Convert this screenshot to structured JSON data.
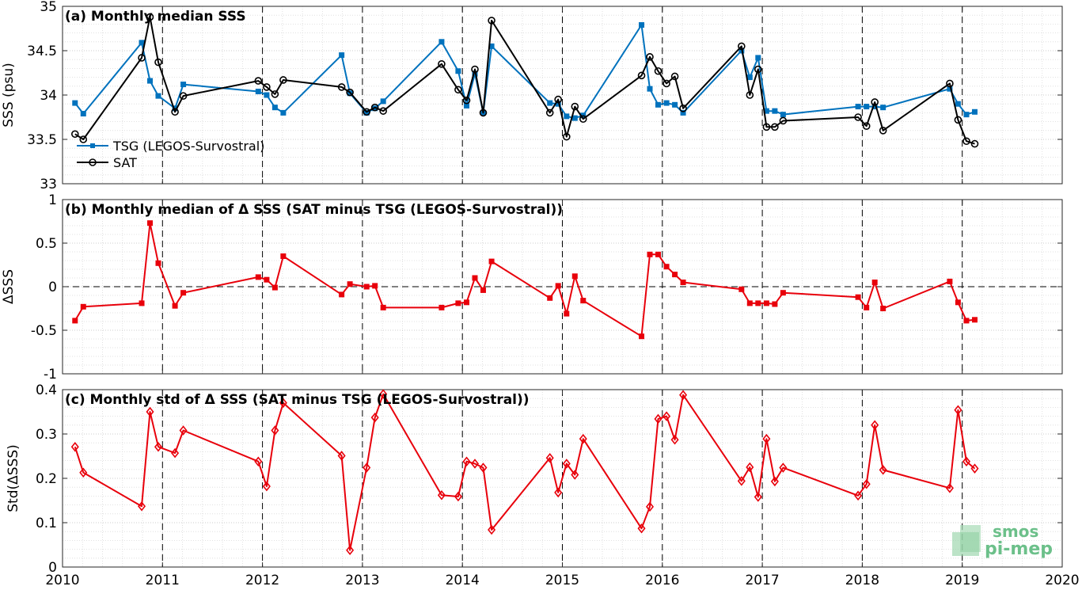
{
  "colors": {
    "tsg": "#0072BD",
    "sat": "#000000",
    "delta": "#E8000B",
    "grid": "#d9d9d9",
    "logo": "#6cc08a"
  },
  "logo": {
    "line1": "smos",
    "line2": "pi-mep"
  },
  "chart_data": [
    {
      "type": "line",
      "title": "(a) Monthly median SSS",
      "xlabel": "",
      "ylabel": "SSS (psu)",
      "xlim": [
        2010,
        2020
      ],
      "ylim": [
        33,
        35
      ],
      "xticks": [
        "2010",
        "2011",
        "2012",
        "2013",
        "2014",
        "2015",
        "2016",
        "2017",
        "2018",
        "2019",
        "2020"
      ],
      "yticks": [
        "33",
        "33.5",
        "34",
        "34.5",
        "35"
      ],
      "grid": true,
      "legend_position": "bottom-left",
      "series": [
        {
          "name": "TSG (LEGOS-Survostral)",
          "x": [
            2010.125,
            2010.208,
            2010.792,
            2010.875,
            2010.958,
            2011.125,
            2011.208,
            2011.958,
            2012.042,
            2012.125,
            2012.208,
            2012.792,
            2012.875,
            2013.042,
            2013.125,
            2013.208,
            2013.792,
            2013.958,
            2014.042,
            2014.125,
            2014.208,
            2014.292,
            2014.875,
            2014.958,
            2015.042,
            2015.125,
            2015.208,
            2015.792,
            2015.875,
            2015.958,
            2016.042,
            2016.125,
            2016.208,
            2016.792,
            2016.875,
            2016.958,
            2017.042,
            2017.125,
            2017.208,
            2017.958,
            2018.042,
            2018.125,
            2018.208,
            2018.875,
            2018.958,
            2019.042,
            2019.125
          ],
          "y": [
            33.91,
            33.79,
            34.59,
            34.16,
            33.99,
            33.85,
            34.12,
            34.04,
            34.0,
            33.86,
            33.8,
            34.45,
            34.02,
            33.8,
            33.85,
            33.93,
            34.6,
            34.27,
            33.88,
            34.24,
            33.8,
            34.55,
            33.91,
            33.9,
            33.76,
            33.74,
            33.77,
            34.79,
            34.07,
            33.89,
            33.91,
            33.89,
            33.8,
            34.5,
            34.2,
            34.42,
            33.82,
            33.82,
            33.78,
            33.87,
            33.87,
            33.87,
            33.86,
            34.07,
            33.9,
            33.78,
            33.81
          ]
        },
        {
          "name": "SAT",
          "x": [
            2010.125,
            2010.208,
            2010.792,
            2010.875,
            2010.958,
            2011.125,
            2011.208,
            2011.958,
            2012.042,
            2012.125,
            2012.208,
            2012.792,
            2012.875,
            2013.042,
            2013.125,
            2013.208,
            2013.792,
            2013.958,
            2014.042,
            2014.125,
            2014.208,
            2014.292,
            2014.875,
            2014.958,
            2015.042,
            2015.125,
            2015.208,
            2015.792,
            2015.875,
            2015.958,
            2016.042,
            2016.125,
            2016.208,
            2016.792,
            2016.875,
            2016.958,
            2017.042,
            2017.125,
            2017.208,
            2017.958,
            2018.042,
            2018.125,
            2018.208,
            2018.875,
            2018.958,
            2019.042,
            2019.125
          ],
          "y": [
            33.56,
            33.5,
            34.42,
            34.88,
            34.37,
            33.81,
            33.99,
            34.16,
            34.09,
            34.01,
            34.17,
            34.09,
            34.03,
            33.81,
            33.86,
            33.82,
            34.35,
            34.06,
            33.94,
            34.29,
            33.8,
            34.84,
            33.8,
            33.95,
            33.53,
            33.87,
            33.73,
            34.22,
            34.43,
            34.27,
            34.13,
            34.21,
            33.85,
            34.55,
            34.0,
            34.29,
            33.64,
            33.64,
            33.71,
            33.75,
            33.65,
            33.92,
            33.6,
            34.13,
            33.72,
            33.48,
            33.45
          ]
        }
      ]
    },
    {
      "type": "line",
      "title": "(b) Monthly median of Δ SSS (SAT minus TSG (LEGOS-Survostral))",
      "xlabel": "",
      "ylabel": "ΔSSS",
      "xlim": [
        2010,
        2020
      ],
      "ylim": [
        -1,
        1
      ],
      "xticks": [
        "2010",
        "2011",
        "2012",
        "2013",
        "2014",
        "2015",
        "2016",
        "2017",
        "2018",
        "2019",
        "2020"
      ],
      "yticks": [
        "-1",
        "-0.5",
        "0",
        "0.5",
        "1"
      ],
      "grid": true,
      "zero_line": true,
      "series": [
        {
          "x": [
            2010.125,
            2010.208,
            2010.792,
            2010.875,
            2010.958,
            2011.125,
            2011.208,
            2011.958,
            2012.042,
            2012.125,
            2012.208,
            2012.792,
            2012.875,
            2013.042,
            2013.125,
            2013.208,
            2013.792,
            2013.958,
            2014.042,
            2014.125,
            2014.208,
            2014.292,
            2014.875,
            2014.958,
            2015.042,
            2015.125,
            2015.208,
            2015.792,
            2015.875,
            2015.958,
            2016.042,
            2016.125,
            2016.208,
            2016.792,
            2016.875,
            2016.958,
            2017.042,
            2017.125,
            2017.208,
            2017.958,
            2018.042,
            2018.125,
            2018.208,
            2018.875,
            2018.958,
            2019.042,
            2019.125
          ],
          "y": [
            -0.39,
            -0.23,
            -0.19,
            0.73,
            0.27,
            -0.22,
            -0.07,
            0.11,
            0.08,
            -0.01,
            0.35,
            -0.09,
            0.03,
            0.0,
            0.01,
            -0.24,
            -0.24,
            -0.19,
            -0.18,
            0.1,
            -0.04,
            0.29,
            -0.13,
            0.01,
            -0.31,
            0.12,
            -0.16,
            -0.57,
            0.37,
            0.37,
            0.23,
            0.14,
            0.05,
            -0.03,
            -0.19,
            -0.19,
            -0.19,
            -0.2,
            -0.07,
            -0.12,
            -0.24,
            0.05,
            -0.25,
            0.06,
            -0.18,
            -0.39,
            -0.38
          ]
        }
      ]
    },
    {
      "type": "line",
      "title": "(c) Monthly std of Δ SSS (SAT minus TSG (LEGOS-Survostral))",
      "xlabel": "",
      "ylabel": "Std(ΔSSS)",
      "xlim": [
        2010,
        2020
      ],
      "ylim": [
        0,
        0.4
      ],
      "xticks": [
        "2010",
        "2011",
        "2012",
        "2013",
        "2014",
        "2015",
        "2016",
        "2017",
        "2018",
        "2019",
        "2020"
      ],
      "yticks": [
        "0",
        "0.1",
        "0.2",
        "0.3",
        "0.4"
      ],
      "grid": true,
      "series": [
        {
          "x": [
            2010.125,
            2010.208,
            2010.792,
            2010.875,
            2010.958,
            2011.125,
            2011.208,
            2011.958,
            2012.042,
            2012.125,
            2012.208,
            2012.792,
            2012.875,
            2013.042,
            2013.125,
            2013.208,
            2013.792,
            2013.958,
            2014.042,
            2014.125,
            2014.208,
            2014.292,
            2014.875,
            2014.958,
            2015.042,
            2015.125,
            2015.208,
            2015.792,
            2015.875,
            2015.958,
            2016.042,
            2016.125,
            2016.208,
            2016.792,
            2016.875,
            2016.958,
            2017.042,
            2017.125,
            2017.208,
            2017.958,
            2018.042,
            2018.125,
            2018.208,
            2018.875,
            2018.958,
            2019.042,
            2019.125
          ],
          "y": [
            0.271,
            0.213,
            0.137,
            0.35,
            0.271,
            0.257,
            0.308,
            0.238,
            0.182,
            0.308,
            0.37,
            0.251,
            0.038,
            0.224,
            0.337,
            0.39,
            0.162,
            0.159,
            0.238,
            0.233,
            0.224,
            0.084,
            0.246,
            0.168,
            0.233,
            0.208,
            0.289,
            0.087,
            0.136,
            0.334,
            0.34,
            0.287,
            0.388,
            0.194,
            0.225,
            0.158,
            0.289,
            0.193,
            0.224,
            0.161,
            0.187,
            0.32,
            0.219,
            0.178,
            0.354,
            0.238,
            0.222
          ]
        }
      ]
    }
  ]
}
